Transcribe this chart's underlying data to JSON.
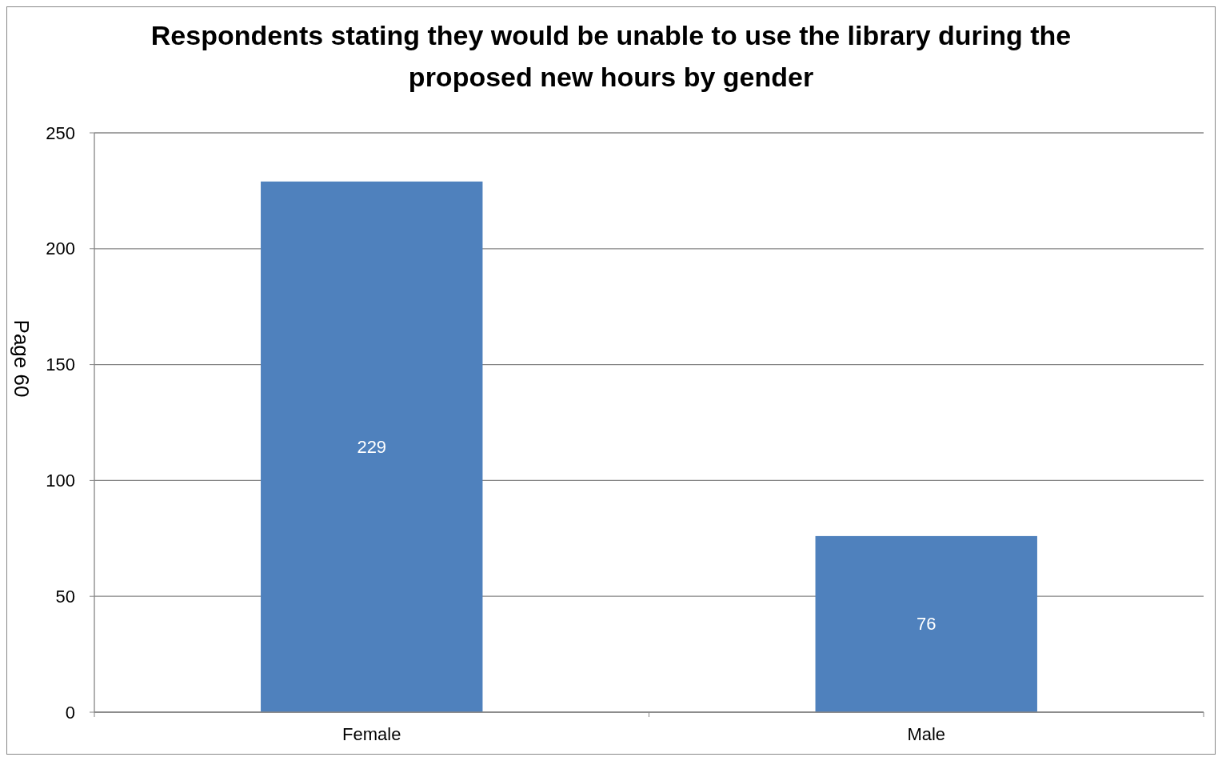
{
  "chart_data": {
    "type": "bar",
    "title": "Respondents stating they would be unable to use the library during the proposed new hours by gender",
    "categories": [
      "Female",
      "Male"
    ],
    "values": [
      229,
      76
    ],
    "color": "#4f81bd",
    "ylim": [
      0,
      250
    ],
    "yticks": [
      0,
      50,
      100,
      150,
      200,
      250
    ],
    "grid": "y",
    "data_labels": true,
    "annotations": [
      "Page 60"
    ]
  }
}
